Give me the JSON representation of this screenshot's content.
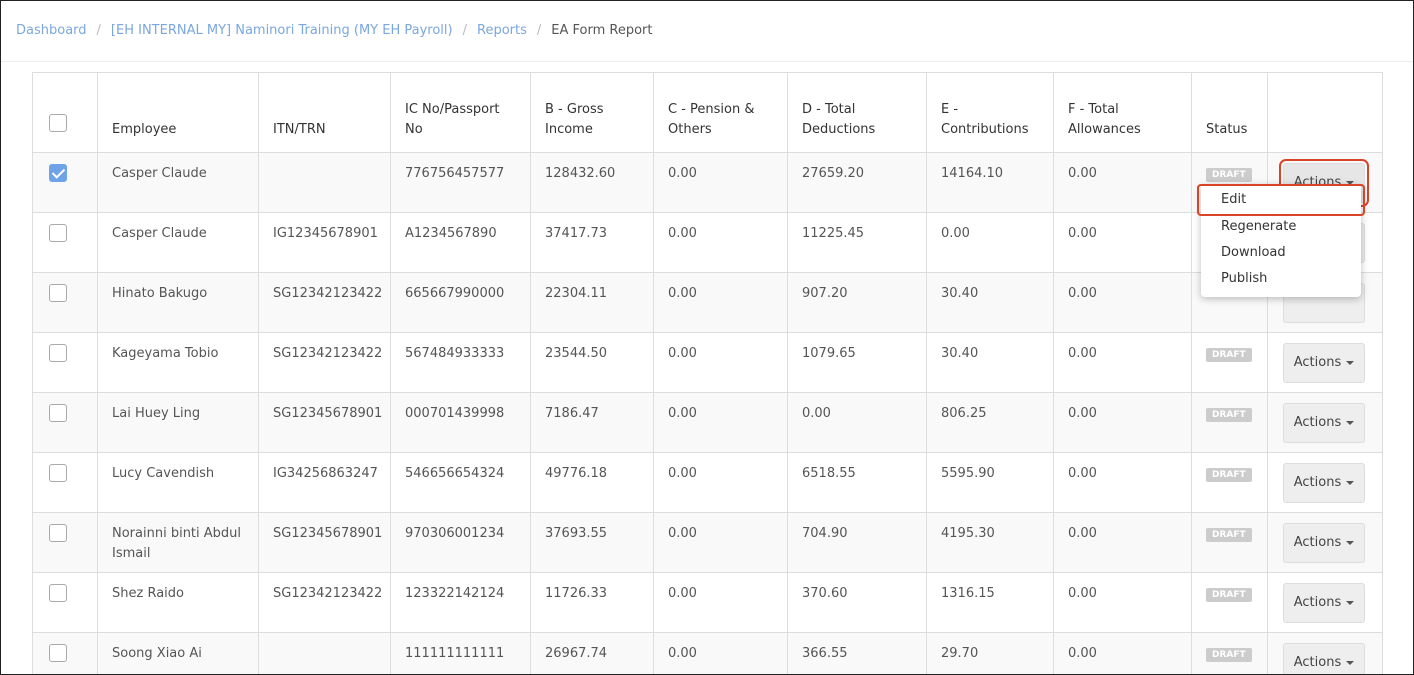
{
  "breadcrumb": [
    "Dashboard",
    "[EH INTERNAL MY] Naminori Training (MY EH Payroll)",
    "Reports",
    "EA Form Report"
  ],
  "table": {
    "columns": [
      "Employee",
      "ITN/TRN",
      "IC No/Passport No",
      "B - Gross Income",
      "C - Pension & Others",
      "D - Total Deductions",
      "E - Contributions",
      "F - Total Allowances",
      "Status"
    ],
    "rows": [
      {
        "checked": true,
        "cells": [
          "Casper Claude",
          null,
          "776756457577",
          "128432.60",
          "0.00",
          "27659.20",
          "14164.10",
          "0.00"
        ],
        "status": "DRAFT",
        "action": "Actions"
      },
      {
        "checked": false,
        "cells": [
          "Casper Claude",
          "IG12345678901",
          "A1234567890",
          "37417.73",
          "0.00",
          "11225.45",
          "0.00",
          "0.00"
        ],
        "status": null,
        "action": null
      },
      {
        "checked": false,
        "cells": [
          "Hinato Bakugo",
          "SG12342123422",
          "665667990000",
          "22304.11",
          "0.00",
          "907.20",
          "30.40",
          "0.00"
        ],
        "status": null,
        "action": null
      },
      {
        "checked": false,
        "cells": [
          "Kageyama Tobio",
          "SG12342123422",
          "567484933333",
          "23544.50",
          "0.00",
          "1079.65",
          "30.40",
          "0.00"
        ],
        "status": "DRAFT",
        "action": "Actions"
      },
      {
        "checked": false,
        "cells": [
          "Lai Huey Ling",
          "SG12345678901",
          "000701439998",
          "7186.47",
          "0.00",
          "0.00",
          "806.25",
          "0.00"
        ],
        "status": "DRAFT",
        "action": "Actions"
      },
      {
        "checked": false,
        "cells": [
          "Lucy Cavendish",
          "IG34256863247",
          "546656654324",
          "49776.18",
          "0.00",
          "6518.55",
          "5595.90",
          "0.00"
        ],
        "status": "DRAFT",
        "action": "Actions"
      },
      {
        "checked": false,
        "cells": [
          "Norainni binti Abdul Ismail",
          "SG12345678901",
          "970306001234",
          "37693.55",
          "0.00",
          "704.90",
          "4195.30",
          "0.00"
        ],
        "status": "DRAFT",
        "action": "Actions"
      },
      {
        "checked": false,
        "cells": [
          "Shez Raido",
          "SG12342123422",
          "123322142124",
          "11726.33",
          "0.00",
          "370.60",
          "1316.15",
          "0.00"
        ],
        "status": "DRAFT",
        "action": "Actions"
      },
      {
        "checked": false,
        "cells": [
          "Soong Xiao Ai",
          null,
          "111111111111",
          "26967.74",
          "0.00",
          "366.55",
          "29.70",
          "0.00"
        ],
        "status": "DRAFT",
        "action": "Actions"
      }
    ]
  },
  "menu": [
    "Edit",
    "Regenerate",
    "Download",
    "Publish"
  ]
}
